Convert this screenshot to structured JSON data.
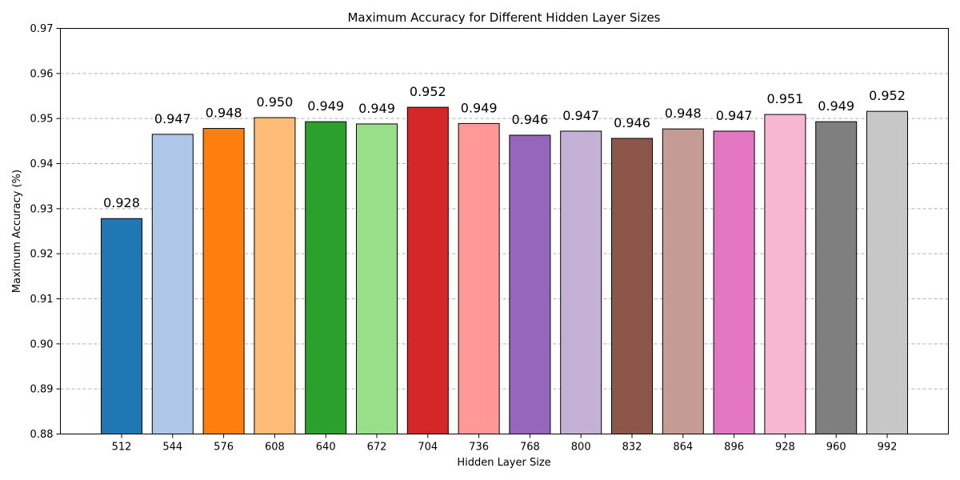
{
  "chart_data": {
    "type": "bar",
    "title": "Maximum Accuracy for Different Hidden Layer Sizes",
    "xlabel": "Hidden Layer Size",
    "ylabel": "Maximum Accuracy (%)",
    "categories": [
      "512",
      "544",
      "576",
      "608",
      "640",
      "672",
      "704",
      "736",
      "768",
      "800",
      "832",
      "864",
      "896",
      "928",
      "960",
      "992"
    ],
    "values": [
      0.9278,
      0.9465,
      0.9478,
      0.9502,
      0.9493,
      0.9488,
      0.9525,
      0.9489,
      0.9463,
      0.9472,
      0.9456,
      0.9477,
      0.9472,
      0.9509,
      0.9493,
      0.9516
    ],
    "value_labels": [
      "0.928",
      "0.947",
      "0.948",
      "0.950",
      "0.949",
      "0.949",
      "0.952",
      "0.949",
      "0.946",
      "0.947",
      "0.946",
      "0.948",
      "0.947",
      "0.951",
      "0.949",
      "0.952"
    ],
    "colors": [
      "#1f77b4",
      "#aec7e8",
      "#ff7f0e",
      "#ffbb78",
      "#2ca02c",
      "#98df8a",
      "#d62728",
      "#ff9896",
      "#9467bd",
      "#c5b0d5",
      "#8c564b",
      "#c49c94",
      "#e377c2",
      "#f7b6d2",
      "#7f7f7f",
      "#c7c7c7"
    ],
    "ylim": [
      0.88,
      0.97
    ],
    "yticks": [
      "0.88",
      "0.89",
      "0.90",
      "0.91",
      "0.92",
      "0.93",
      "0.94",
      "0.95",
      "0.96",
      "0.97"
    ],
    "grid": "y-dashed",
    "legend": "none"
  }
}
